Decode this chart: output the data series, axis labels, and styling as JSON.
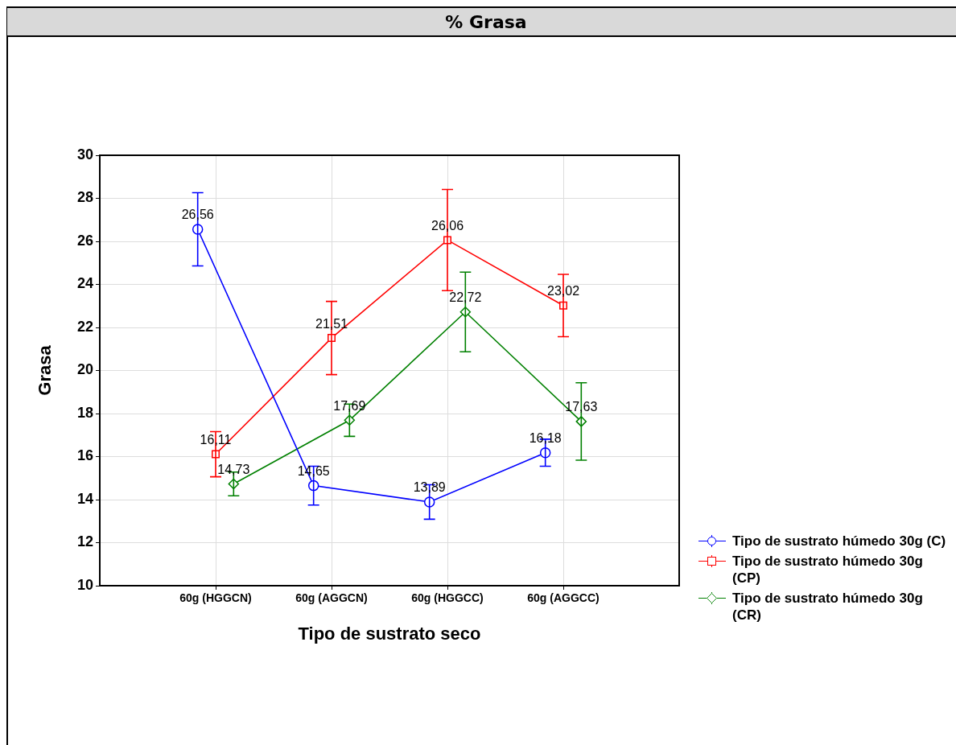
{
  "chart_data": {
    "type": "line",
    "title": "% Grasa",
    "xlabel": "Tipo de sustrato seco",
    "ylabel": "Grasa",
    "categories": [
      "60g (HGGCN)",
      "60g (AGGCN)",
      "60g (HGGCC)",
      "60g (AGGCC)"
    ],
    "series": [
      {
        "name": "Tipo de sustrato húmedo 30g (C)",
        "color": "#0000ff",
        "marker": "circle",
        "values": [
          26.56,
          14.65,
          13.89,
          16.18
        ],
        "value_labels": [
          "26,56",
          "14,65",
          "13,89",
          "16,18"
        ],
        "errors": [
          1.7,
          0.9,
          0.8,
          0.63
        ]
      },
      {
        "name": "Tipo de sustrato húmedo 30g (CP)",
        "color": "#ff0000",
        "marker": "square",
        "values": [
          16.11,
          21.51,
          26.06,
          23.02
        ],
        "value_labels": [
          "16,11",
          "21,51",
          "26,06",
          "23,02"
        ],
        "errors": [
          1.05,
          1.7,
          2.35,
          1.45
        ]
      },
      {
        "name": "Tipo de sustrato húmedo 30g (CR)",
        "color": "#008000",
        "marker": "diamond",
        "values": [
          14.73,
          17.69,
          22.72,
          17.63
        ],
        "value_labels": [
          "14,73",
          "17,69",
          "22,72",
          "17,63"
        ],
        "errors": [
          0.55,
          0.75,
          1.85,
          1.8
        ]
      }
    ],
    "ylim": [
      10,
      30
    ],
    "yticks": [
      10,
      12,
      14,
      16,
      18,
      20,
      22,
      24,
      26,
      28,
      30
    ],
    "grid": true,
    "legend": "bottom right"
  }
}
